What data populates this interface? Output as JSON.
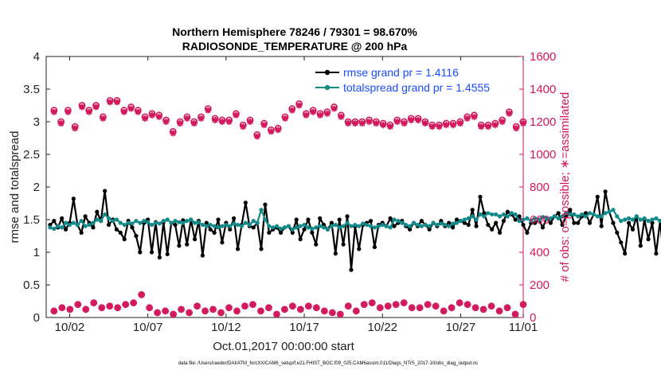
{
  "chart_data": {
    "type": "line",
    "title": "Northern Hemisphere 78246 / 79301 = 98.670%",
    "subtitle": "RADIOSONDE_TEMPERATURE @ 200 hPa",
    "xlabel": "Oct.01,2017 00:00:00 start",
    "ylabel": "rmse and totalspread",
    "y2label": "# of obs: o=possible; ∗=assimilated",
    "xlim": [
      0.5,
      31
    ],
    "ylim": [
      0,
      4
    ],
    "y2lim": [
      0,
      1600
    ],
    "x_ticks": [
      {
        "value": 2,
        "label": "10/02"
      },
      {
        "value": 7,
        "label": "10/07"
      },
      {
        "value": 12,
        "label": "10/12"
      },
      {
        "value": 17,
        "label": "10/17"
      },
      {
        "value": 22,
        "label": "10/22"
      },
      {
        "value": 27,
        "label": "10/27"
      },
      {
        "value": 31,
        "label": "11/01"
      }
    ],
    "y_ticks": [
      {
        "value": 0,
        "label": "0"
      },
      {
        "value": 0.5,
        "label": "0.5"
      },
      {
        "value": 1,
        "label": "1"
      },
      {
        "value": 1.5,
        "label": "1.5"
      },
      {
        "value": 2,
        "label": "2"
      },
      {
        "value": 2.5,
        "label": "2.5"
      },
      {
        "value": 3,
        "label": "3"
      },
      {
        "value": 3.5,
        "label": "3.5"
      },
      {
        "value": 4,
        "label": "4"
      }
    ],
    "y2_ticks": [
      {
        "value": 0,
        "label": "0"
      },
      {
        "value": 200,
        "label": "200"
      },
      {
        "value": 400,
        "label": "400"
      },
      {
        "value": 600,
        "label": "600"
      },
      {
        "value": 800,
        "label": "800"
      },
      {
        "value": 1000,
        "label": "1000"
      },
      {
        "value": 1200,
        "label": "1200"
      },
      {
        "value": 1400,
        "label": "1400"
      },
      {
        "value": 1600,
        "label": "1600"
      }
    ],
    "x_start": 0.75,
    "x_step": 0.25,
    "series": [
      {
        "name": "rmse grand pr = 1.4116",
        "color": "#000000",
        "axis": "left",
        "values": [
          1.42,
          1.48,
          1.38,
          1.52,
          1.35,
          1.45,
          1.82,
          1.42,
          1.3,
          1.55,
          1.45,
          1.38,
          1.62,
          1.48,
          1.94,
          1.42,
          1.5,
          1.35,
          1.3,
          1.2,
          1.48,
          1.38,
          1.25,
          1.0,
          1.45,
          1.5,
          1.0,
          1.46,
          0.92,
          1.46,
          0.97,
          1.45,
          1.42,
          1.1,
          1.49,
          1.12,
          1.5,
          1.2,
          1.48,
          0.95,
          1.45,
          1.35,
          1.3,
          1.5,
          1.15,
          1.45,
          1.35,
          1.52,
          1.05,
          1.42,
          1.76,
          1.4,
          1.38,
          1.45,
          1.05,
          1.73,
          1.3,
          1.35,
          1.38,
          1.3,
          1.38,
          1.4,
          1.3,
          1.5,
          1.2,
          1.35,
          1.5,
          1.3,
          1.12,
          1.52,
          1.42,
          1.35,
          1.45,
          0.98,
          1.5,
          1.12,
          1.55,
          0.73,
          1.4,
          1.05,
          1.42,
          1.45,
          1.48,
          1.08,
          1.42,
          1.45,
          1.4,
          1.52,
          1.4,
          1.45,
          1.48,
          1.4,
          1.35,
          1.45,
          1.4,
          1.48,
          1.42,
          1.35,
          1.45,
          1.4,
          1.48,
          1.4,
          1.45,
          1.38,
          1.5,
          1.48,
          1.45,
          1.42,
          1.65,
          1.4,
          1.85,
          1.6,
          1.42,
          1.35,
          1.45,
          1.3,
          1.48,
          1.62,
          1.58,
          1.5,
          1.55,
          1.42,
          1.3,
          1.45,
          1.45,
          1.5,
          1.38,
          1.52,
          1.45,
          1.55,
          1.6,
          1.42,
          1.55,
          1.65,
          1.45,
          1.45,
          1.55,
          1.6,
          1.45,
          1.58,
          1.85,
          1.4,
          1.93,
          1.62,
          1.45,
          1.3,
          1.15,
          0.98,
          1.45,
          1.35,
          1.55,
          1.1,
          1.5,
          1.2,
          1.45,
          0.98,
          1.48,
          0.88,
          1.45,
          1.02,
          1.52,
          1.45,
          1.5,
          1.18
        ]
      },
      {
        "name": "totalspread grand pr = 1.4555",
        "color": "#138a8a",
        "axis": "left",
        "values": [
          1.38,
          1.36,
          1.4,
          1.38,
          1.45,
          1.42,
          1.45,
          1.42,
          1.48,
          1.4,
          1.42,
          1.45,
          1.5,
          1.48,
          1.58,
          1.52,
          1.48,
          1.5,
          1.45,
          1.42,
          1.45,
          1.44,
          1.48,
          1.45,
          1.48,
          1.46,
          1.42,
          1.45,
          1.44,
          1.48,
          1.5,
          1.45,
          1.48,
          1.46,
          1.45,
          1.48,
          1.5,
          1.45,
          1.46,
          1.42,
          1.4,
          1.42,
          1.4,
          1.38,
          1.4,
          1.42,
          1.4,
          1.44,
          1.42,
          1.4,
          1.45,
          1.42,
          1.48,
          1.45,
          1.65,
          1.5,
          1.4,
          1.38,
          1.4,
          1.36,
          1.38,
          1.4,
          1.35,
          1.38,
          1.4,
          1.42,
          1.38,
          1.36,
          1.38,
          1.4,
          1.38,
          1.35,
          1.4,
          1.42,
          1.38,
          1.4,
          1.45,
          1.4,
          1.42,
          1.4,
          1.44,
          1.42,
          1.4,
          1.38,
          1.4,
          1.42,
          1.4,
          1.38,
          1.5,
          1.48,
          1.45,
          1.42,
          1.4,
          1.45,
          1.42,
          1.4,
          1.42,
          1.4,
          1.45,
          1.42,
          1.44,
          1.42,
          1.4,
          1.44,
          1.45,
          1.48,
          1.5,
          1.52,
          1.55,
          1.5,
          1.58,
          1.55,
          1.6,
          1.58,
          1.58,
          1.55,
          1.58,
          1.55,
          1.6,
          1.58,
          1.48,
          1.5,
          1.52,
          1.48,
          1.52,
          1.5,
          1.54,
          1.52,
          1.52,
          1.55,
          1.52,
          1.55,
          1.6,
          1.58,
          1.58,
          1.55,
          1.58,
          1.55,
          1.6,
          1.58,
          1.55,
          1.55,
          1.6,
          1.62,
          1.65,
          1.55,
          1.48,
          1.5,
          1.52,
          1.5,
          1.55,
          1.5,
          1.52,
          1.48,
          1.5,
          1.52,
          1.48,
          1.5,
          1.52,
          1.48,
          1.5,
          1.52
        ]
      },
      {
        "name": "obs possible",
        "color": "#d2185c",
        "axis": "right",
        "marker": "o",
        "values": [
          1270,
          1200,
          1270,
          1170,
          1300,
          1270,
          1300,
          1230,
          1330,
          1330,
          1270,
          1290,
          1270,
          1230,
          1250,
          1240,
          1210,
          1140,
          1200,
          1230,
          1200,
          1230,
          1280,
          1220,
          1210,
          1210,
          1250,
          1180,
          1210,
          1120,
          1190,
          1150,
          1160,
          1230,
          1280,
          1310,
          1250,
          1270,
          1250,
          1260,
          1290,
          1240,
          1200,
          1200,
          1200,
          1210,
          1200,
          1190,
          1180,
          1210,
          1200,
          1220,
          1220,
          1200,
          1180,
          1180,
          1190,
          1190,
          1200,
          1230,
          1240,
          1180,
          1180,
          1190,
          1210,
          1260,
          1170,
          1200
        ]
      },
      {
        "name": "obs assimilated",
        "color": "#d2185c",
        "axis": "right",
        "marker": "*",
        "values": [
          1260,
          1190,
          1260,
          1160,
          1290,
          1260,
          1290,
          1220,
          1320,
          1320,
          1260,
          1280,
          1260,
          1220,
          1240,
          1230,
          1200,
          1130,
          1190,
          1220,
          1190,
          1220,
          1270,
          1210,
          1200,
          1200,
          1240,
          1170,
          1200,
          1110,
          1180,
          1140,
          1150,
          1220,
          1270,
          1300,
          1240,
          1260,
          1240,
          1250,
          1280,
          1230,
          1190,
          1190,
          1190,
          1200,
          1190,
          1180,
          1170,
          1200,
          1190,
          1210,
          1210,
          1190,
          1170,
          1170,
          1180,
          1180,
          1190,
          1220,
          1230,
          1170,
          1170,
          1180,
          1200,
          1250,
          1160,
          1190
        ]
      },
      {
        "name": "obs possible (low)",
        "color": "#d2185c",
        "axis": "right",
        "marker": "o",
        "values": [
          40,
          60,
          50,
          80,
          50,
          90,
          60,
          70,
          60,
          80,
          90,
          140,
          60,
          30,
          40,
          20,
          50,
          30,
          70,
          40,
          50,
          30,
          60,
          40,
          70,
          80,
          40,
          60,
          20,
          50,
          70,
          50,
          70,
          60,
          40,
          30,
          20,
          70,
          40,
          80,
          90,
          60,
          70,
          80,
          90,
          60,
          60,
          80,
          70,
          40,
          60,
          90,
          80,
          60,
          50,
          70,
          40,
          60,
          20,
          80
        ]
      },
      {
        "name": "obs assimilated (low)",
        "color": "#d2185c",
        "axis": "right",
        "marker": "*",
        "values": [
          40,
          60,
          50,
          80,
          50,
          90,
          60,
          70,
          60,
          80,
          90,
          140,
          60,
          30,
          40,
          20,
          50,
          30,
          70,
          40,
          50,
          30,
          60,
          40,
          70,
          80,
          40,
          60,
          20,
          50,
          70,
          50,
          70,
          60,
          40,
          30,
          20,
          70,
          40,
          80,
          90,
          60,
          70,
          80,
          90,
          60,
          60,
          80,
          70,
          40,
          60,
          90,
          80,
          60,
          50,
          70,
          40,
          60,
          20,
          80
        ]
      }
    ],
    "legend": {
      "placement": "top-right",
      "entries": [
        "rmse grand pr = 1.4116",
        "totalspread grand pr = 1.4555"
      ]
    }
  },
  "footer": "data file: /Users/raeder/DAI/ATM_forcXX/CAM6_setup/f.e21.FHIST_BGC.f09_025.CAM6assim.011/Diags_NTrS_2017-10/obs_diag_output.nc",
  "colors": {
    "rmse": "#000000",
    "spread": "#138a8a",
    "obs": "#d2185c",
    "legend_text": "#1a4cff"
  }
}
